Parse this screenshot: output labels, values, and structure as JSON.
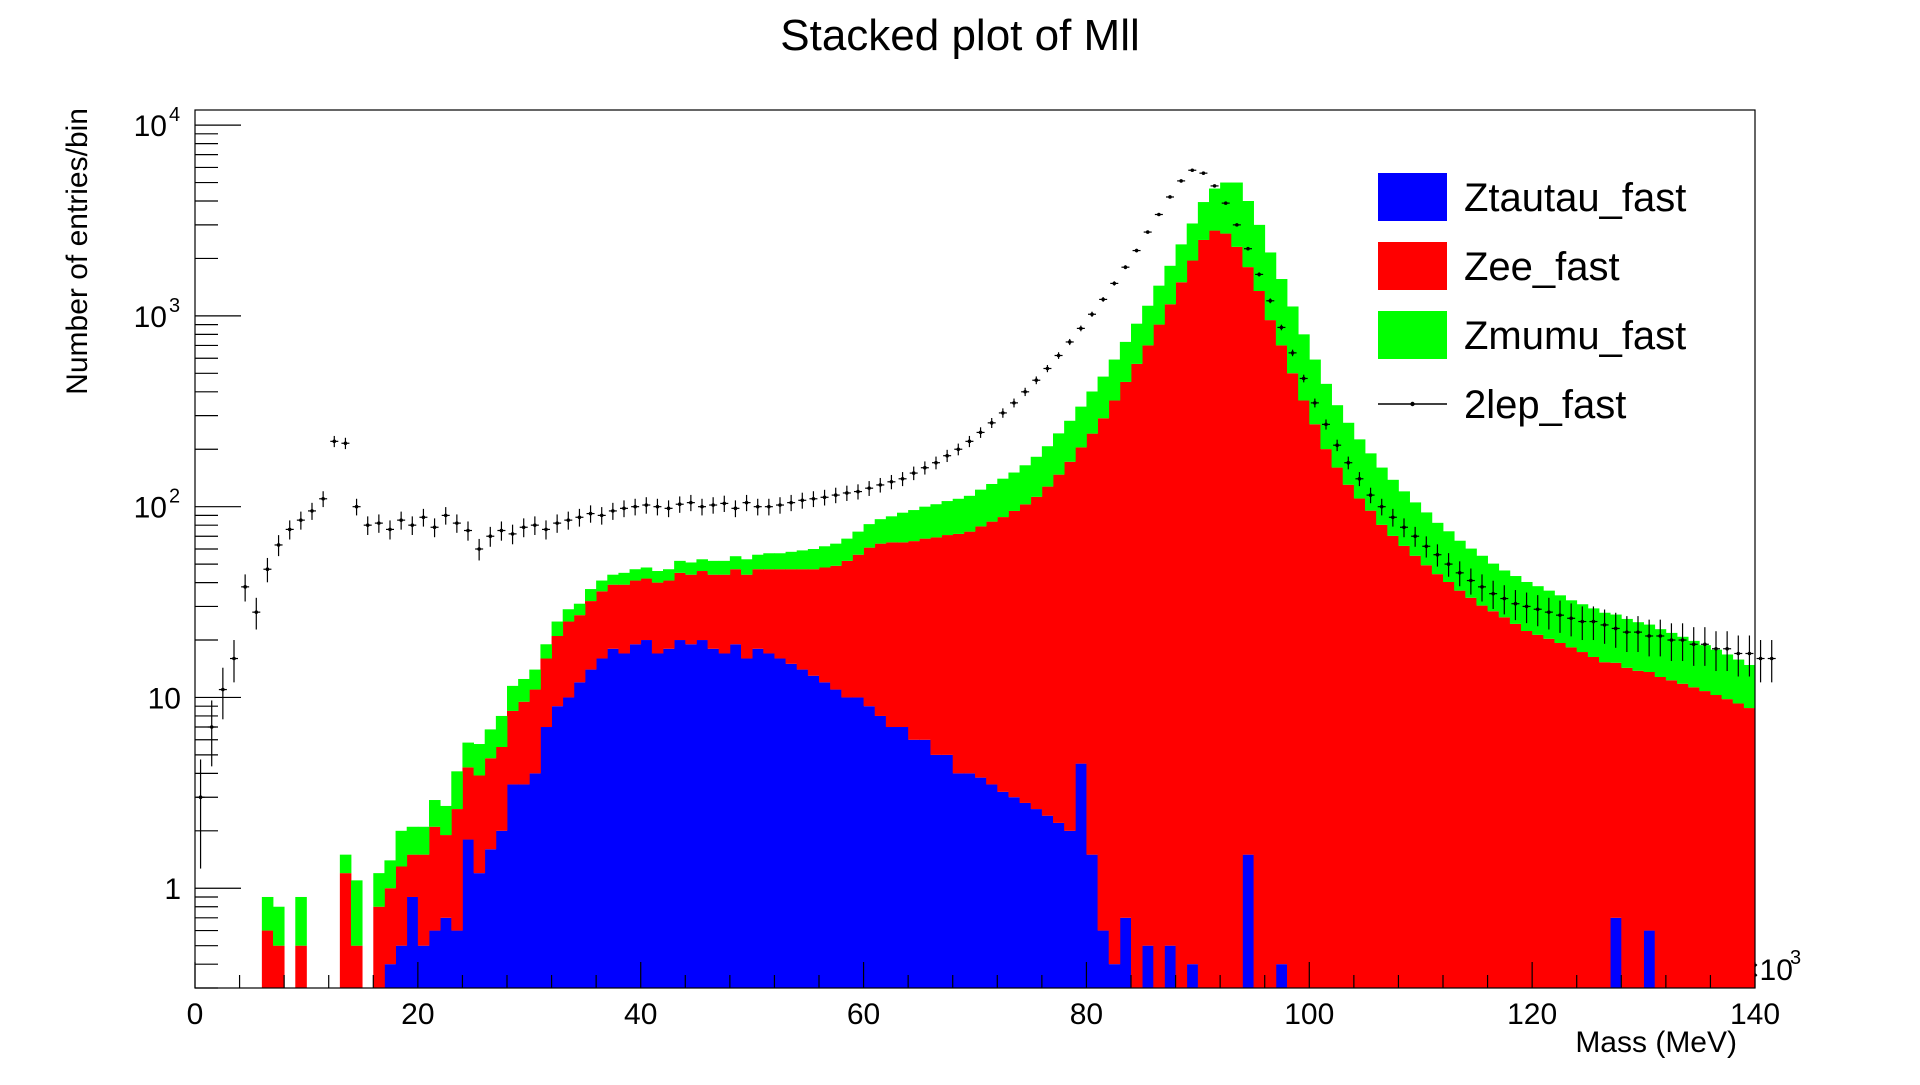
{
  "chart_data": {
    "type": "bar",
    "title": "Stacked plot of Mll",
    "xlabel": "Mass (MeV)",
    "ylabel": "Number of entries/bin",
    "x_scale_label": "×10",
    "x_scale_exponent": "3",
    "xlim": [
      0,
      140
    ],
    "ylim": [
      0.3,
      12000
    ],
    "y_scale": "log",
    "x_ticks": [
      "0",
      "20",
      "40",
      "60",
      "80",
      "100",
      "120",
      "140"
    ],
    "y_tick_labels": [
      {
        "value": 1,
        "base": "1",
        "exp": ""
      },
      {
        "value": 10,
        "base": "10",
        "exp": ""
      },
      {
        "value": 100,
        "base": "10",
        "exp": "2"
      },
      {
        "value": 1000,
        "base": "10",
        "exp": "3"
      },
      {
        "value": 10000,
        "base": "10",
        "exp": "4"
      }
    ],
    "bin_width": 1,
    "stacked": true,
    "legend_position": "top-right",
    "colors": {
      "Ztautau_fast": "#0000ff",
      "Zee_fast": "#ff0000",
      "Zmumu_fast": "#00ff00",
      "2lep_fast": "#000000"
    },
    "legend": [
      {
        "name": "Ztautau_fast",
        "style": "fill"
      },
      {
        "name": "Zee_fast",
        "style": "fill"
      },
      {
        "name": "Zmumu_fast",
        "style": "fill"
      },
      {
        "name": "2lep_fast",
        "style": "marker"
      }
    ],
    "series": [
      {
        "name": "Ztautau_fast",
        "bins_start": 0,
        "values": [
          0,
          0,
          0,
          0,
          0,
          0,
          0,
          0,
          0,
          0,
          0,
          0,
          0,
          0,
          0,
          0,
          0,
          0.4,
          0.5,
          0.9,
          0.5,
          0.6,
          0.7,
          0.6,
          1.8,
          1.2,
          1.6,
          2.0,
          3.5,
          3.5,
          4,
          7,
          9,
          10,
          12,
          14,
          16,
          18,
          17,
          19,
          20,
          17,
          18,
          20,
          19,
          20,
          18,
          17,
          19,
          16,
          18,
          17,
          16,
          15,
          14,
          13,
          12,
          11,
          10,
          10,
          9,
          8,
          7,
          7,
          6,
          6,
          5,
          5,
          4,
          4,
          3.8,
          3.5,
          3.2,
          3,
          2.8,
          2.6,
          2.4,
          2.2,
          2.0,
          4.5,
          1.5,
          0.6,
          0.4,
          0.7,
          0.3,
          0.5,
          0.3,
          0.5,
          0.3,
          0.4,
          0.3,
          0.3,
          0.3,
          0.3,
          1.5,
          0.3,
          0.3,
          0.4,
          0.3,
          0.3,
          0.3,
          0.3,
          0.3,
          0.3,
          0.3,
          0.3,
          0.3,
          0.3,
          0.3,
          0.3,
          0.3,
          0.3,
          0.3,
          0.3,
          0.3,
          0.3,
          0.3,
          0.3,
          0.3,
          0.3,
          0.3,
          0.3,
          0.3,
          0.3,
          0.3,
          0.3,
          0.3,
          0.7,
          0.3,
          0.3,
          0.6,
          0.3,
          0.3,
          0.3,
          0.3,
          0.3,
          0.3,
          0.3,
          0.3,
          0.3,
          0.3,
          0.3
        ]
      },
      {
        "name": "Zee_fast",
        "bins_start": 0,
        "values": [
          0,
          0,
          0,
          0,
          0,
          0,
          0.6,
          0.5,
          0,
          0.5,
          0,
          0,
          0,
          1.2,
          0.5,
          0,
          0.8,
          0.6,
          0.8,
          0.6,
          1,
          1.5,
          1.2,
          2,
          2.5,
          2.7,
          3.2,
          3.5,
          5,
          6,
          7,
          9,
          12,
          15,
          15,
          18,
          20,
          21,
          22,
          22,
          22,
          23,
          23,
          25,
          25,
          26,
          26,
          27,
          28,
          28,
          29,
          30,
          31,
          32,
          33,
          34,
          36,
          38,
          42,
          46,
          52,
          56,
          58,
          58,
          60,
          62,
          64,
          66,
          68,
          70,
          75,
          80,
          85,
          92,
          100,
          110,
          125,
          145,
          170,
          200,
          240,
          290,
          360,
          450,
          560,
          700,
          900,
          1150,
          1500,
          1950,
          2500,
          2800,
          2700,
          2300,
          1800,
          1350,
          950,
          700,
          500,
          360,
          270,
          200,
          160,
          130,
          110,
          95,
          80,
          70,
          62,
          55,
          49,
          44,
          40,
          36,
          33,
          30,
          28,
          26,
          24,
          22,
          21,
          20,
          19,
          18,
          17,
          16,
          15,
          14.5,
          14,
          13.5,
          13,
          12.5,
          12,
          11.5,
          11,
          10.5,
          10,
          9.5,
          9,
          8.5,
          8,
          7.5,
          7,
          6.5
        ]
      },
      {
        "name": "Zmumu_fast",
        "bins_start": 0,
        "values": [
          0,
          0,
          0,
          0,
          0,
          0,
          0.3,
          0.3,
          0,
          0.4,
          0,
          0,
          0,
          0.3,
          0.6,
          0,
          0.4,
          0.4,
          0.7,
          0.6,
          0.6,
          0.8,
          0.8,
          1.5,
          1.5,
          1.8,
          2,
          2.5,
          3,
          3,
          3,
          3,
          4,
          4,
          4,
          5,
          5,
          5,
          6,
          6,
          6,
          6,
          6,
          7,
          7,
          7,
          8,
          8,
          8,
          9,
          9,
          10,
          10,
          11,
          12,
          13,
          14,
          15,
          16,
          18,
          20,
          22,
          24,
          28,
          30,
          32,
          34,
          36,
          38,
          40,
          44,
          48,
          52,
          56,
          62,
          70,
          80,
          95,
          110,
          130,
          160,
          190,
          230,
          280,
          350,
          430,
          540,
          680,
          870,
          1100,
          1450,
          1850,
          2300,
          2700,
          2200,
          1650,
          1200,
          860,
          620,
          440,
          320,
          240,
          180,
          145,
          115,
          95,
          80,
          68,
          58,
          50,
          44,
          38,
          34,
          30,
          27,
          25,
          22,
          20,
          19,
          18,
          17,
          16,
          15,
          14,
          13.5,
          13,
          12.5,
          12,
          11.5,
          11,
          10.5,
          10,
          9.5,
          9,
          8.5,
          8,
          7.5,
          7,
          6.5,
          6,
          5.5
        ]
      },
      {
        "name": "2lep_fast",
        "style": "points",
        "bins_start": 0,
        "values": [
          3,
          7,
          11,
          16,
          38,
          28,
          47,
          63,
          76,
          85,
          95,
          110,
          220,
          215,
          100,
          80,
          82,
          76,
          85,
          80,
          88,
          78,
          90,
          82,
          75,
          60,
          70,
          75,
          72,
          78,
          80,
          76,
          82,
          85,
          88,
          92,
          90,
          95,
          98,
          100,
          102,
          100,
          98,
          103,
          105,
          100,
          102,
          104,
          98,
          105,
          100,
          100,
          102,
          105,
          108,
          110,
          112,
          115,
          118,
          120,
          125,
          130,
          135,
          140,
          150,
          160,
          170,
          185,
          200,
          220,
          245,
          275,
          310,
          350,
          400,
          460,
          530,
          620,
          730,
          860,
          1020,
          1220,
          1480,
          1800,
          2200,
          2750,
          3400,
          4200,
          5100,
          5800,
          5600,
          4800,
          3900,
          3000,
          2250,
          1650,
          1200,
          870,
          640,
          470,
          350,
          270,
          210,
          170,
          140,
          115,
          100,
          88,
          78,
          70,
          62,
          56,
          50,
          45,
          41,
          38,
          35,
          33,
          31,
          30,
          29,
          28,
          27,
          26,
          25,
          25,
          24,
          23,
          22,
          22,
          21,
          21,
          20,
          20,
          19,
          19,
          18,
          18,
          17,
          17,
          16,
          16
        ]
      }
    ]
  }
}
